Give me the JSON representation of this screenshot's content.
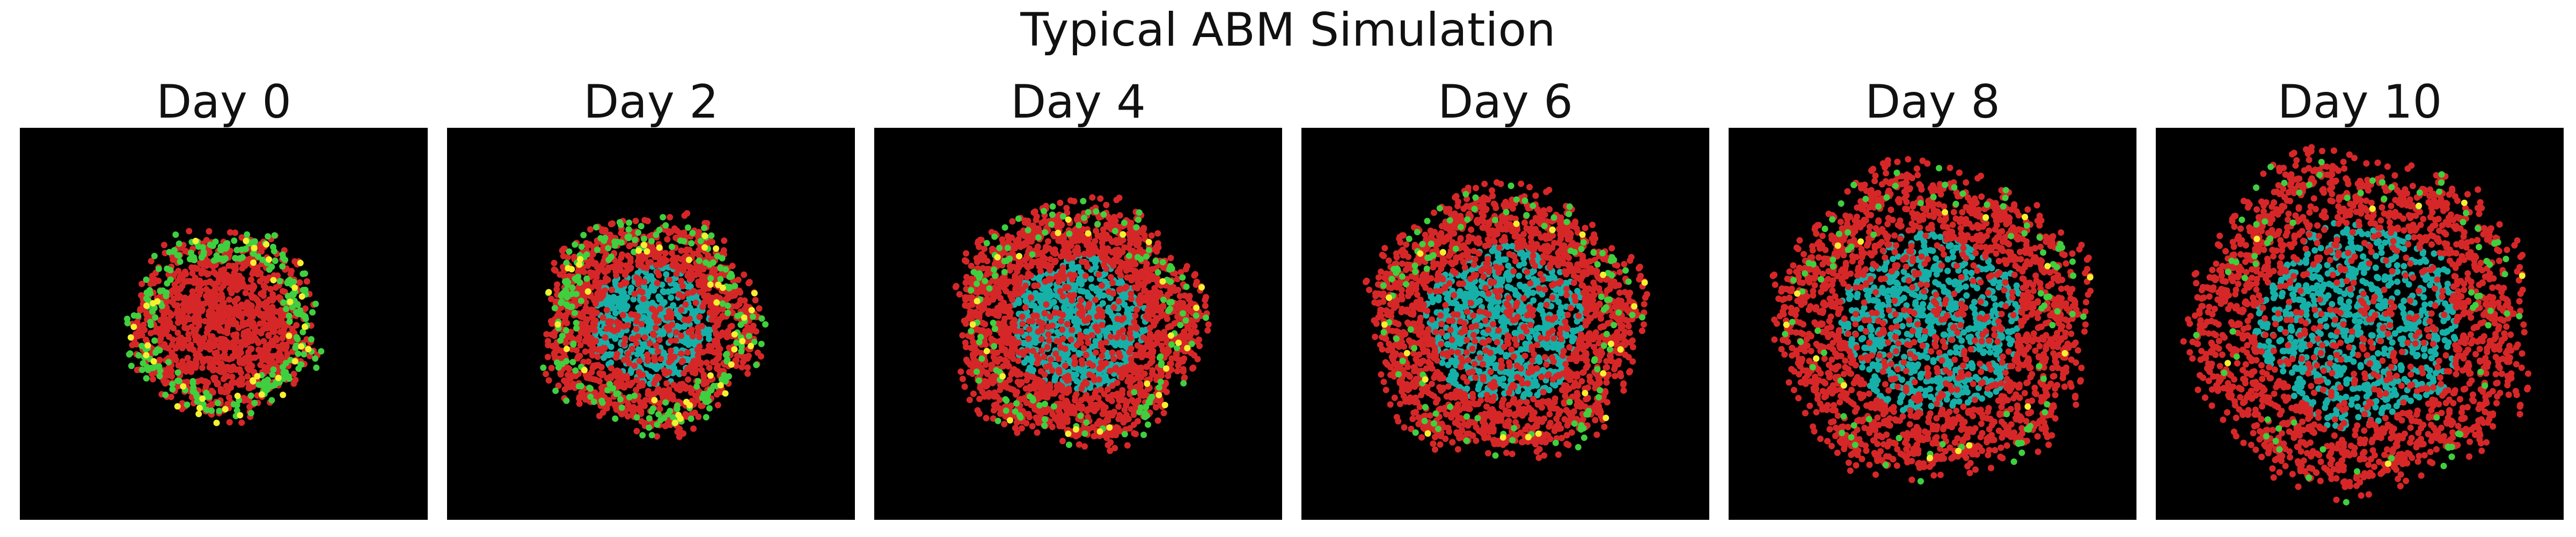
{
  "title": "Typical ABM Simulation",
  "colors": {
    "background": "#000000",
    "red": "#d62728",
    "cyan": "#17b0a8",
    "green": "#3fcf3f",
    "yellow": "#f6f030"
  },
  "chart_data": [
    {
      "type": "scatter",
      "title": "Day 0",
      "radius": 0.45,
      "cells": 1400,
      "cyan_fraction": 0.0,
      "core_radius": 0.0,
      "green_fraction": 0.18,
      "yellow_fraction": 0.02,
      "grid": false,
      "axes": false
    },
    {
      "type": "scatter",
      "title": "Day 2",
      "radius": 0.51,
      "cells": 1900,
      "cyan_fraction": 0.04,
      "core_radius": 0.3,
      "green_fraction": 0.1,
      "yellow_fraction": 0.015,
      "grid": false,
      "axes": false
    },
    {
      "type": "scatter",
      "title": "Day 4",
      "radius": 0.58,
      "cells": 2600,
      "cyan_fraction": 0.08,
      "core_radius": 0.34,
      "green_fraction": 0.05,
      "yellow_fraction": 0.008,
      "grid": false,
      "axes": false
    },
    {
      "type": "scatter",
      "title": "Day 6",
      "radius": 0.64,
      "cells": 3100,
      "cyan_fraction": 0.15,
      "core_radius": 0.4,
      "green_fraction": 0.04,
      "yellow_fraction": 0.005,
      "grid": false,
      "axes": false
    },
    {
      "type": "scatter",
      "title": "Day 8",
      "radius": 0.74,
      "cells": 3600,
      "cyan_fraction": 0.22,
      "core_radius": 0.46,
      "green_fraction": 0.03,
      "yellow_fraction": 0.004,
      "grid": false,
      "axes": false
    },
    {
      "type": "scatter",
      "title": "Day 10",
      "radius": 0.8,
      "cells": 4000,
      "cyan_fraction": 0.25,
      "core_radius": 0.52,
      "green_fraction": 0.025,
      "yellow_fraction": 0.003,
      "grid": false,
      "axes": false
    }
  ]
}
